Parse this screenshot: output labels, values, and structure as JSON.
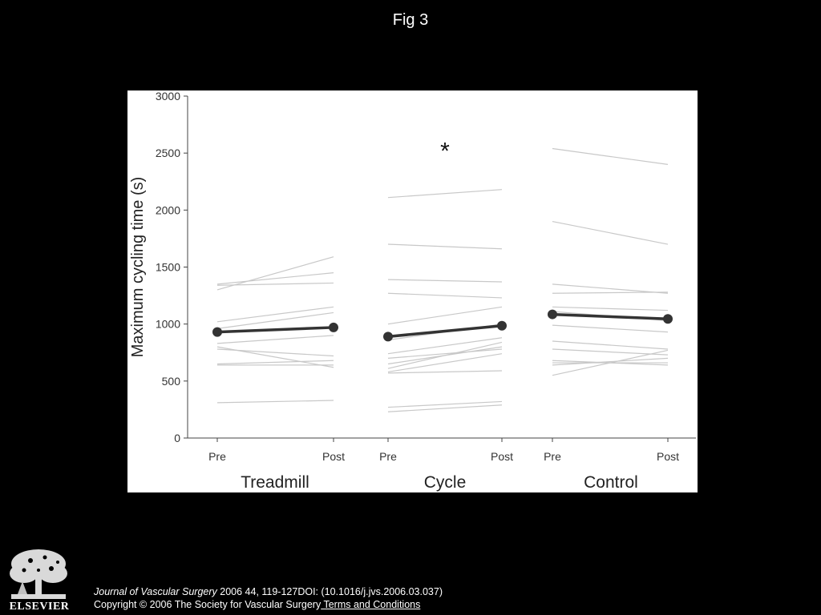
{
  "figure_title": "Fig 3",
  "citation": {
    "journal": "Journal of Vascular Surgery",
    "details": " 2006 44, 119-127DOI: (10.1016/j.jvs.2006.03.037)"
  },
  "copyright": "Copyright © 2006 The Society for Vascular Surgery",
  "terms_link": " Terms and Conditions",
  "publisher_logo": "ELSEVIER",
  "chart_data": {
    "type": "line",
    "ylabel": "Maximum cycling time (s)",
    "ylim": [
      0,
      3000
    ],
    "yticks": [
      0,
      500,
      1000,
      1500,
      2000,
      2500,
      3000
    ],
    "grid": false,
    "colors": {
      "individual": "#c8c8c8",
      "mean": "#333333"
    },
    "annotation": {
      "text": "*",
      "group": "Cycle",
      "y": 2560
    },
    "groups": [
      {
        "name": "Treadmill",
        "x_labels": [
          "Pre",
          "Post"
        ],
        "mean": [
          930,
          970
        ],
        "individuals": [
          [
            1350,
            1450
          ],
          [
            1340,
            1360
          ],
          [
            1300,
            1590
          ],
          [
            1020,
            1150
          ],
          [
            960,
            1100
          ],
          [
            830,
            900
          ],
          [
            800,
            620
          ],
          [
            780,
            720
          ],
          [
            650,
            680
          ],
          [
            640,
            640
          ],
          [
            310,
            330
          ]
        ]
      },
      {
        "name": "Cycle",
        "x_labels": [
          "Pre",
          "Post"
        ],
        "mean": [
          890,
          985
        ],
        "individuals": [
          [
            2110,
            2180
          ],
          [
            1700,
            1660
          ],
          [
            1390,
            1370
          ],
          [
            1270,
            1230
          ],
          [
            1000,
            1150
          ],
          [
            860,
            1000
          ],
          [
            740,
            880
          ],
          [
            700,
            780
          ],
          [
            650,
            800
          ],
          [
            610,
            840
          ],
          [
            580,
            740
          ],
          [
            570,
            590
          ],
          [
            270,
            320
          ],
          [
            230,
            290
          ]
        ]
      },
      {
        "name": "Control",
        "x_labels": [
          "Pre",
          "Post"
        ],
        "mean": [
          1085,
          1045
        ],
        "individuals": [
          [
            2540,
            2400
          ],
          [
            1900,
            1700
          ],
          [
            1350,
            1270
          ],
          [
            1270,
            1280
          ],
          [
            1150,
            1120
          ],
          [
            1110,
            1030
          ],
          [
            990,
            930
          ],
          [
            850,
            780
          ],
          [
            780,
            730
          ],
          [
            680,
            640
          ],
          [
            660,
            660
          ],
          [
            640,
            700
          ],
          [
            550,
            770
          ]
        ]
      }
    ]
  }
}
